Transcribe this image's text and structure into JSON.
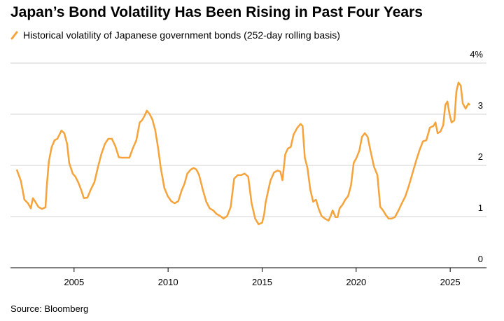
{
  "chart_data": {
    "type": "line",
    "title": "Japan’s Bond Volatility Has Been Rising in Past Four Years",
    "source": "Source: Bloomberg",
    "x": [
      2001.95,
      2002.17,
      2002.36,
      2002.55,
      2002.7,
      2002.81,
      2002.92,
      2003.1,
      2003.29,
      2003.48,
      2003.55,
      2003.66,
      2003.81,
      2003.96,
      2004.11,
      2004.33,
      2004.48,
      2004.63,
      2004.74,
      2004.93,
      2005.07,
      2005.22,
      2005.37,
      2005.52,
      2005.71,
      2005.89,
      2006.08,
      2006.26,
      2006.45,
      2006.64,
      2006.82,
      2007.01,
      2007.19,
      2007.38,
      2007.56,
      2007.75,
      2007.94,
      2008.12,
      2008.31,
      2008.49,
      2008.61,
      2008.75,
      2008.87,
      2009.01,
      2009.16,
      2009.31,
      2009.46,
      2009.61,
      2009.8,
      2009.98,
      2010.17,
      2010.35,
      2010.54,
      2010.72,
      2010.87,
      2011.02,
      2011.21,
      2011.36,
      2011.5,
      2011.65,
      2011.84,
      2012.03,
      2012.21,
      2012.4,
      2012.58,
      2012.77,
      2012.95,
      2013.14,
      2013.33,
      2013.51,
      2013.7,
      2013.88,
      2014.07,
      2014.26,
      2014.44,
      2014.63,
      2014.81,
      2015.0,
      2015.11,
      2015.18,
      2015.3,
      2015.44,
      2015.63,
      2015.82,
      2015.97,
      2016.08,
      2016.23,
      2016.37,
      2016.52,
      2016.67,
      2016.86,
      2017.04,
      2017.15,
      2017.27,
      2017.41,
      2017.56,
      2017.71,
      2017.86,
      2018.01,
      2018.16,
      2018.34,
      2018.53,
      2018.64,
      2018.75,
      2018.9,
      2019.01,
      2019.12,
      2019.27,
      2019.42,
      2019.57,
      2019.72,
      2019.87,
      2020.02,
      2020.17,
      2020.31,
      2020.46,
      2020.61,
      2020.76,
      2020.95,
      2021.13,
      2021.28,
      2021.43,
      2021.58,
      2021.73,
      2021.88,
      2022.06,
      2022.25,
      2022.43,
      2022.62,
      2022.8,
      2022.99,
      2023.18,
      2023.36,
      2023.55,
      2023.73,
      2023.92,
      2024.11,
      2024.22,
      2024.33,
      2024.48,
      2024.63,
      2024.74,
      2024.85,
      2024.96,
      2025.07,
      2025.22,
      2025.33,
      2025.44,
      2025.56,
      2025.67,
      2025.82,
      2025.97,
      2026.04
    ],
    "series": [
      {
        "name": "Historical volatility of Japanese government bonds (252-day rolling basis)",
        "color": "#f5a33a",
        "values": [
          1.92,
          1.7,
          1.33,
          1.26,
          1.16,
          1.36,
          1.3,
          1.19,
          1.15,
          1.18,
          1.6,
          2.08,
          2.36,
          2.49,
          2.52,
          2.68,
          2.63,
          2.42,
          2.05,
          1.84,
          1.78,
          1.67,
          1.53,
          1.36,
          1.37,
          1.53,
          1.67,
          1.95,
          2.22,
          2.42,
          2.52,
          2.52,
          2.38,
          2.16,
          2.15,
          2.15,
          2.15,
          2.33,
          2.49,
          2.84,
          2.88,
          2.97,
          3.07,
          3.01,
          2.9,
          2.7,
          2.36,
          1.95,
          1.56,
          1.4,
          1.3,
          1.26,
          1.3,
          1.51,
          1.64,
          1.84,
          1.92,
          1.95,
          1.92,
          1.81,
          1.53,
          1.29,
          1.16,
          1.12,
          1.05,
          1.01,
          0.96,
          1.01,
          1.19,
          1.74,
          1.81,
          1.81,
          1.84,
          1.78,
          1.26,
          0.96,
          0.85,
          0.88,
          1.05,
          1.26,
          1.47,
          1.7,
          1.86,
          1.9,
          1.88,
          1.71,
          2.22,
          2.33,
          2.36,
          2.6,
          2.73,
          2.81,
          2.77,
          2.15,
          1.95,
          1.53,
          1.29,
          1.33,
          1.15,
          1.01,
          0.96,
          0.92,
          1.01,
          1.12,
          0.99,
          0.99,
          1.16,
          1.23,
          1.33,
          1.4,
          1.6,
          2.05,
          2.15,
          2.29,
          2.56,
          2.63,
          2.56,
          2.29,
          1.97,
          1.81,
          1.19,
          1.12,
          1.03,
          0.96,
          0.96,
          0.99,
          1.12,
          1.26,
          1.4,
          1.6,
          1.84,
          2.08,
          2.29,
          2.47,
          2.49,
          2.74,
          2.77,
          2.84,
          2.63,
          2.66,
          2.79,
          3.18,
          3.25,
          3.01,
          2.84,
          2.88,
          3.45,
          3.62,
          3.56,
          3.21,
          3.11,
          3.21,
          3.18
        ]
      }
    ],
    "xlim": [
      2001.62,
      2026.93
    ],
    "xticks": [
      2005,
      2010,
      2015,
      2020,
      2025
    ],
    "ylim": [
      0,
      4
    ],
    "yticks": [
      0,
      1,
      2,
      3,
      {
        "value": 4,
        "label": "4%"
      }
    ],
    "grid": true
  }
}
